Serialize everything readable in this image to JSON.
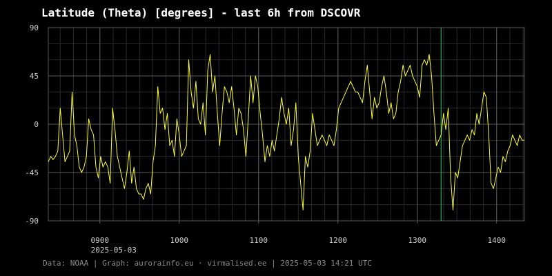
{
  "title": "Latitude (Theta) [degrees] - last 6h from DSCOVR",
  "footer": "Data: NOAA | Graph: aurorainfo.eu · virmalised.ee | 2025-05-03 14:21 UTC",
  "colors": {
    "background": "#000000",
    "line": "#ffff33",
    "grid": "#3a3a3a",
    "marker": "#33cc66"
  },
  "chart_data": {
    "type": "line",
    "title": "Latitude (Theta) [degrees] - last 6h from DSCOVR",
    "xlabel": "",
    "ylabel": "",
    "ylim": [
      -90,
      90
    ],
    "xlim": [
      8.35,
      14.35
    ],
    "grid": true,
    "legend": "none",
    "yticks": [
      {
        "value": 90,
        "label": "90"
      },
      {
        "value": 45,
        "label": "45"
      },
      {
        "value": 0,
        "label": "0"
      },
      {
        "value": -45,
        "label": "-45"
      },
      {
        "value": -90,
        "label": "-90"
      }
    ],
    "xticks": [
      {
        "value": 9,
        "label": "0900"
      },
      {
        "value": 10,
        "label": "1000"
      },
      {
        "value": 11,
        "label": "1100"
      },
      {
        "value": 12,
        "label": "1200"
      },
      {
        "value": 13,
        "label": "1300"
      },
      {
        "value": 14,
        "label": "1400"
      }
    ],
    "date_label": "2025-05-03",
    "marker_time": 13.3,
    "series": [
      {
        "x": [
          8.35,
          8.38,
          8.41,
          8.44,
          8.47,
          8.5,
          8.53,
          8.56,
          8.59,
          8.62,
          8.65,
          8.68,
          8.71,
          8.74,
          8.77,
          8.8,
          8.83,
          8.86,
          8.89,
          8.92,
          8.95,
          8.98,
          9.01,
          9.04,
          9.07,
          9.1,
          9.13,
          9.16,
          9.19,
          9.22,
          9.25,
          9.28,
          9.31,
          9.34,
          9.37,
          9.4,
          9.43,
          9.46,
          9.49,
          9.52,
          9.55,
          9.58,
          9.61,
          9.64,
          9.67,
          9.7,
          9.73,
          9.76,
          9.79,
          9.82,
          9.85,
          9.88,
          9.91,
          9.94,
          9.97,
          10.0,
          10.03,
          10.06,
          10.09,
          10.12,
          10.15,
          10.18,
          10.21,
          10.24,
          10.27,
          10.3,
          10.33,
          10.36,
          10.39,
          10.42,
          10.45,
          10.48,
          10.51,
          10.54,
          10.57,
          10.6,
          10.63,
          10.66,
          10.69,
          10.72,
          10.75,
          10.78,
          10.81,
          10.84,
          10.87,
          10.9,
          10.93,
          10.96,
          10.99,
          11.02,
          11.05,
          11.08,
          11.11,
          11.14,
          11.17,
          11.2,
          11.23,
          11.26,
          11.29,
          11.32,
          11.35,
          11.38,
          11.41,
          11.44,
          11.47,
          11.5,
          11.53,
          11.56,
          11.59,
          11.62,
          11.65,
          11.68,
          11.71,
          11.74,
          11.77,
          11.8,
          11.83,
          11.86,
          11.89,
          11.92,
          11.95,
          11.98,
          12.01,
          12.04,
          12.07,
          12.1,
          12.13,
          12.16,
          12.19,
          12.22,
          12.25,
          12.28,
          12.31,
          12.34,
          12.37,
          12.4,
          12.43,
          12.46,
          12.49,
          12.52,
          12.55,
          12.58,
          12.61,
          12.64,
          12.67,
          12.7,
          12.73,
          12.76,
          12.79,
          12.82,
          12.85,
          12.88,
          12.91,
          12.94,
          12.97,
          13.0,
          13.03,
          13.06,
          13.09,
          13.12,
          13.15,
          13.18,
          13.21,
          13.24,
          13.27,
          13.3,
          13.33,
          13.36,
          13.39,
          13.42,
          13.45,
          13.48,
          13.51,
          13.54,
          13.57,
          13.6,
          13.63,
          13.66,
          13.69,
          13.72,
          13.75,
          13.78,
          13.81,
          13.84,
          13.87,
          13.9,
          13.93,
          13.96,
          13.99,
          14.02,
          14.05,
          14.08,
          14.11,
          14.14,
          14.17,
          14.2,
          14.23,
          14.26,
          14.29,
          14.32,
          14.35
        ],
        "y": [
          -35,
          -30,
          -33,
          -30,
          -25,
          15,
          -10,
          -35,
          -30,
          -25,
          30,
          -10,
          -20,
          -40,
          -45,
          -40,
          -30,
          5,
          -5,
          -10,
          -40,
          -50,
          -30,
          -40,
          -35,
          -40,
          -55,
          15,
          -5,
          -30,
          -40,
          -50,
          -60,
          -45,
          -25,
          -55,
          -40,
          -60,
          -65,
          -65,
          -70,
          -60,
          -55,
          -65,
          -35,
          -20,
          35,
          10,
          15,
          -5,
          10,
          -20,
          -15,
          -30,
          5,
          -10,
          -30,
          -25,
          -20,
          60,
          30,
          15,
          40,
          5,
          0,
          20,
          -10,
          50,
          65,
          30,
          45,
          10,
          -20,
          10,
          35,
          30,
          20,
          35,
          15,
          -10,
          15,
          10,
          -5,
          -30,
          5,
          45,
          20,
          45,
          35,
          10,
          -10,
          -35,
          -20,
          -30,
          -15,
          -25,
          -10,
          5,
          25,
          10,
          0,
          15,
          -20,
          -5,
          20,
          -30,
          -55,
          -80,
          -30,
          -40,
          -25,
          10,
          -5,
          -20,
          -15,
          -10,
          -15,
          -20,
          -10,
          -15,
          -20,
          -5,
          15,
          20,
          25,
          30,
          35,
          40,
          35,
          30,
          30,
          25,
          20,
          40,
          55,
          30,
          5,
          25,
          15,
          20,
          35,
          45,
          30,
          10,
          20,
          5,
          10,
          30,
          40,
          55,
          45,
          50,
          55,
          45,
          40,
          35,
          25,
          55,
          60,
          55,
          65,
          45,
          10,
          -20,
          -15,
          -10,
          10,
          -5,
          15,
          -50,
          -80,
          -45,
          -50,
          -35,
          -20,
          -15,
          -10,
          -15,
          -5,
          -10,
          10,
          0,
          15,
          30,
          25,
          -10,
          -55,
          -60,
          -50,
          -40,
          -45,
          -30,
          -35,
          -25,
          -20,
          -10,
          -15,
          -20,
          -10,
          -15,
          -15
        ]
      }
    ]
  }
}
